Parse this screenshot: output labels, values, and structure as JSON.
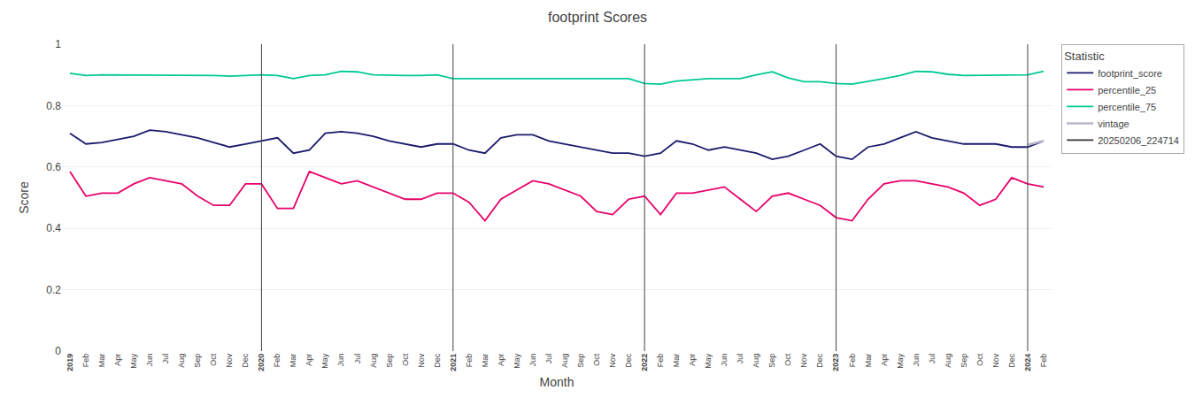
{
  "chart_data": {
    "type": "line",
    "title": "footprint Scores",
    "xlabel": "Month",
    "ylabel": "Score",
    "ylim": [
      0.0,
      1.0
    ],
    "yticks": [
      0.0,
      0.2,
      0.4,
      0.6,
      0.8,
      1.0
    ],
    "grid": true,
    "legend": "upper right",
    "legend_title": "Statistic",
    "categories": [
      "2019",
      "Feb",
      "Mar",
      "Apr",
      "May",
      "Jun",
      "Jul",
      "Aug",
      "Sep",
      "Oct",
      "Nov",
      "Dec",
      "2020",
      "Feb",
      "Mar",
      "Apr",
      "May",
      "Jun",
      "Jul",
      "Aug",
      "Sep",
      "Oct",
      "Nov",
      "Dec",
      "2021",
      "Feb",
      "Mar",
      "Apr",
      "May",
      "Jun",
      "Jul",
      "Aug",
      "Sep",
      "Oct",
      "Nov",
      "Dec",
      "2022",
      "Feb",
      "Mar",
      "Apr",
      "May",
      "Jun",
      "Jul",
      "Aug",
      "Sep",
      "Oct",
      "Nov",
      "Dec",
      "2023",
      "Feb",
      "Mar",
      "Apr",
      "May",
      "Jun",
      "Jul",
      "Aug",
      "Sep",
      "Oct",
      "Nov",
      "Dec",
      "2024",
      "Feb"
    ],
    "series": [
      {
        "name": "footprint_score",
        "color": "#1a1a6e",
        "values": [
          0.71,
          0.675,
          0.68,
          0.69,
          0.7,
          0.72,
          0.715,
          0.705,
          0.695,
          0.68,
          0.665,
          0.675,
          0.685,
          0.695,
          0.645,
          0.655,
          0.71,
          0.715,
          0.71,
          0.7,
          0.685,
          0.675,
          0.665,
          0.675,
          0.675,
          0.655,
          0.645,
          0.695,
          0.705,
          0.705,
          0.685,
          0.675,
          0.665,
          0.655,
          0.645,
          0.645,
          0.635,
          0.645,
          0.685,
          0.675,
          0.655,
          0.665,
          0.655,
          0.645,
          0.625,
          0.635,
          0.655,
          0.675,
          0.635,
          0.625,
          0.665,
          0.675,
          0.695,
          0.715,
          0.695,
          0.685,
          0.675,
          0.675,
          0.675,
          0.665,
          0.665,
          0.685
        ]
      },
      {
        "name": "percentile_25",
        "color": "#e8006a",
        "values": [
          0.585,
          0.505,
          0.515,
          0.515,
          0.545,
          0.565,
          0.555,
          0.545,
          0.505,
          0.475,
          0.475,
          0.545,
          0.545,
          0.465,
          0.465,
          0.585,
          0.565,
          0.545,
          0.555,
          0.535,
          0.515,
          0.495,
          0.495,
          0.515,
          0.515,
          0.485,
          0.425,
          0.495,
          0.525,
          0.555,
          0.545,
          0.525,
          0.505,
          0.455,
          0.445,
          0.495,
          0.505,
          0.445,
          0.515,
          0.515,
          0.525,
          0.535,
          0.495,
          0.455,
          0.505,
          0.515,
          0.495,
          0.475,
          0.435,
          0.425,
          0.495,
          0.545,
          0.555,
          0.555,
          0.545,
          0.535,
          0.515,
          0.475,
          0.495,
          0.565,
          0.545,
          0.535
        ]
      },
      {
        "name": "percentile_75",
        "color": "#00c896",
        "values": [
          0.905,
          0.898,
          0.9,
          0.9,
          0.9,
          0.9,
          0.9,
          0.9,
          0.9,
          0.898,
          0.896,
          0.898,
          0.9,
          0.898,
          0.888,
          0.898,
          0.9,
          0.912,
          0.91,
          0.9,
          0.898,
          0.898,
          0.898,
          0.9,
          0.888,
          0.888,
          0.888,
          0.888,
          0.89,
          0.89,
          0.888,
          0.888,
          0.888,
          0.888,
          0.888,
          0.888,
          0.872,
          0.87,
          0.88,
          0.885,
          0.888,
          0.888,
          0.888,
          0.9,
          0.91,
          0.89,
          0.878,
          0.878,
          0.872,
          0.87,
          0.878,
          0.888,
          0.898,
          0.912,
          0.91,
          0.902,
          0.898,
          0.898,
          0.898,
          0.9,
          0.9,
          0.912
        ]
      },
      {
        "name": "vintage",
        "color": "#b8b8cc",
        "values": [
          null,
          null,
          null,
          null,
          null,
          null,
          null,
          null,
          null,
          null,
          null,
          null,
          null,
          null,
          null,
          null,
          null,
          null,
          null,
          null,
          null,
          null,
          null,
          null,
          null,
          null,
          null,
          null,
          null,
          null,
          null,
          null,
          null,
          null,
          null,
          null,
          null,
          null,
          null,
          null,
          null,
          null,
          null,
          null,
          null,
          null,
          null,
          null,
          null,
          null,
          null,
          null,
          null,
          null,
          null,
          null,
          null,
          null,
          null,
          null,
          0.672,
          0.685
        ]
      },
      {
        "name": "20250206_224714",
        "color": "#333333",
        "values": [
          null,
          null,
          null,
          null,
          null,
          null,
          null,
          null,
          null,
          null,
          null,
          null,
          null,
          null,
          null,
          null,
          null,
          null,
          null,
          null,
          null,
          null,
          null,
          null,
          null,
          null,
          null,
          null,
          null,
          null,
          null,
          null,
          null,
          null,
          null,
          null,
          null,
          null,
          null,
          null,
          null,
          null,
          null,
          null,
          null,
          null,
          null,
          null,
          null,
          null,
          null,
          null,
          null,
          null,
          null,
          null,
          null,
          null,
          null,
          null,
          null,
          null
        ]
      }
    ]
  }
}
